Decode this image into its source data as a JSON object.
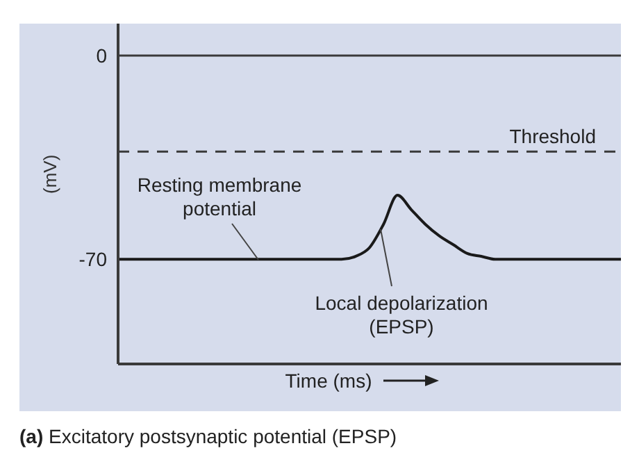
{
  "chart_data": {
    "type": "line",
    "title": "(a) Excitatory postsynaptic potential (EPSP)",
    "xlabel": "Time (ms)",
    "ylabel": "(mV)",
    "categories": [
      null,
      null,
      null,
      null,
      null,
      null,
      null,
      null,
      null,
      null,
      null,
      null,
      null,
      null,
      null,
      null,
      null,
      null,
      null,
      null,
      null,
      null,
      null,
      null,
      null,
      null,
      null,
      null,
      null,
      null,
      null,
      null,
      null,
      null,
      null,
      null,
      null
    ],
    "series": [
      {
        "color": "#1a1a1a",
        "values": [
          -70,
          -70,
          -70,
          -70,
          -70,
          -70,
          -70,
          -70,
          -70,
          -70,
          -70,
          -70,
          -70,
          -70,
          -70,
          -70,
          -70,
          -69,
          -66,
          -58,
          -48,
          -53,
          -58,
          -62,
          -65,
          -68,
          -69,
          -70,
          -70,
          -70,
          -70,
          -70,
          -70,
          -70,
          -70,
          -70,
          -70
        ]
      }
    ],
    "ylim": [
      -106,
      11
    ],
    "yticks": [
      0,
      -70
    ],
    "tick_labels": "y",
    "ref_lines": [
      {
        "axis": "y",
        "value": 0,
        "color": "#3a3a3a",
        "line_style": "solid"
      },
      {
        "axis": "y",
        "value": -33,
        "label": "Threshold",
        "color": "#3a3a3a",
        "line_style": "dashed"
      }
    ],
    "annotations": [
      "Resting membrane potential",
      "Local depolarization (EPSP)"
    ]
  }
}
